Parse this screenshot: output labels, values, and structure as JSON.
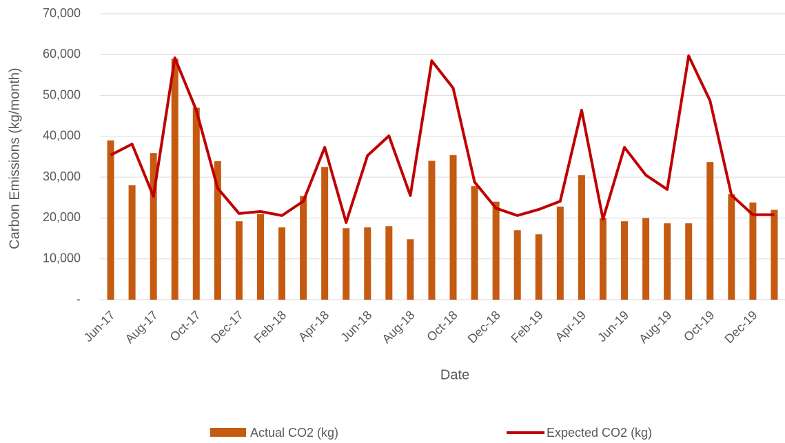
{
  "chart_data": {
    "type": "bar_line",
    "x_label": "Date",
    "y_label": "Carbon Emissions (kg/month)",
    "categories": [
      "Jun-17",
      null,
      "Aug-17",
      null,
      "Oct-17",
      null,
      "Dec-17",
      null,
      "Feb-18",
      null,
      "Apr-18",
      null,
      "Jun-18",
      null,
      "Aug-18",
      null,
      "Oct-18",
      null,
      "Dec-18",
      null,
      "Feb-19",
      null,
      "Apr-19",
      null,
      "Jun-19",
      null,
      "Aug-19",
      null,
      "Oct-19",
      null,
      "Dec-19",
      null
    ],
    "series": [
      {
        "name": "Actual CO2 (kg)",
        "type": "bar",
        "color": "#c55a11",
        "values": [
          39000,
          28000,
          35900,
          59000,
          47000,
          33900,
          19200,
          21000,
          17700,
          25400,
          32500,
          17500,
          17700,
          18000,
          14800,
          34000,
          35400,
          27800,
          24000,
          17000,
          16000,
          22800,
          30500,
          20000,
          19200,
          20000,
          18700,
          18700,
          33700,
          25800,
          23800,
          22000
        ]
      },
      {
        "name": "Expected CO2 (kg)",
        "type": "line",
        "color": "#c00000",
        "values": [
          35400,
          38100,
          25300,
          59200,
          46400,
          27300,
          21100,
          21600,
          20600,
          24100,
          37300,
          18900,
          35300,
          40100,
          25500,
          58500,
          51800,
          28800,
          22400,
          20600,
          22100,
          24100,
          46400,
          19700,
          37300,
          30500,
          27000,
          59700,
          48700,
          25600,
          20800,
          20800
        ]
      }
    ],
    "ylim": [
      0,
      70000
    ],
    "yticks": [
      {
        "value": 0,
        "label": "-"
      },
      {
        "value": 10000,
        "label": "10,000"
      },
      {
        "value": 20000,
        "label": "20,000"
      },
      {
        "value": 30000,
        "label": "30,000"
      },
      {
        "value": 40000,
        "label": "40,000"
      },
      {
        "value": 50000,
        "label": "50,000"
      },
      {
        "value": 60000,
        "label": "60,000"
      },
      {
        "value": 70000,
        "label": "70,000"
      }
    ],
    "grid": true,
    "legend": "bottom"
  }
}
